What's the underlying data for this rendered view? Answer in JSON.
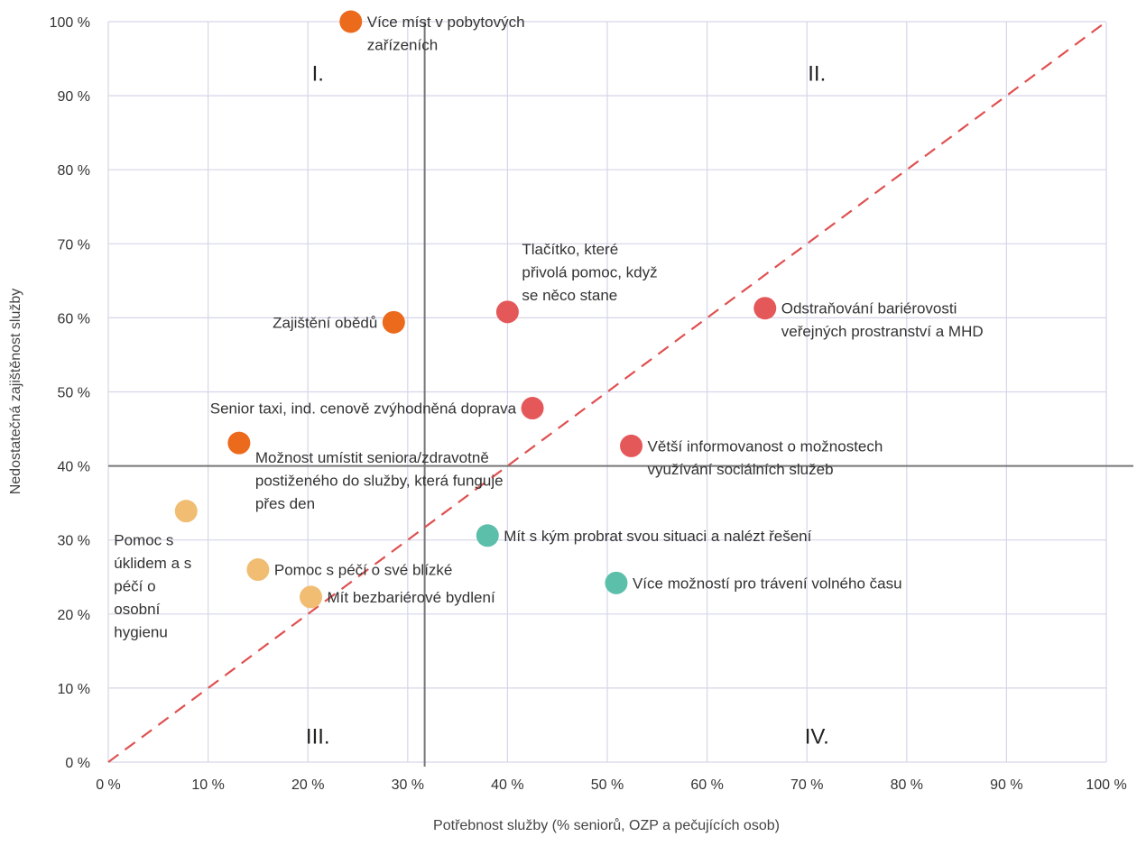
{
  "chart_data": {
    "type": "scatter",
    "xlabel": "Potřebnost služby (% seniorů, OZP a pečujících osob)",
    "ylabel": "Nedostatečná zajištěnost služby",
    "xlim": [
      0,
      100
    ],
    "ylim": [
      0,
      100
    ],
    "x_ticks": [
      "0 %",
      "10 %",
      "20 %",
      "30 %",
      "40 %",
      "50 %",
      "60 %",
      "70 %",
      "80 %",
      "90 %",
      "100 %"
    ],
    "y_ticks": [
      "0 %",
      "10 %",
      "20 %",
      "30 %",
      "40 %",
      "50 %",
      "60 %",
      "70 %",
      "80 %",
      "90 %",
      "100 %"
    ],
    "grid": true,
    "divider_x": 31.7,
    "divider_y": 40,
    "diagonal_color": "#e05050",
    "quadrant_labels": [
      {
        "text": "I.",
        "x": 21,
        "y": 92
      },
      {
        "text": "II.",
        "x": 71,
        "y": 92
      },
      {
        "text": "III.",
        "x": 21,
        "y": 2.5
      },
      {
        "text": "IV.",
        "x": 71,
        "y": 2.5
      }
    ],
    "colors": {
      "orange": "#ec6a1c",
      "red": "#e5585a",
      "peach": "#f0bd72",
      "teal": "#5bbfaa"
    },
    "points": [
      {
        "x": 24.3,
        "y": 100,
        "color": "orange",
        "lines": [
          "Více míst v pobytových",
          "zařízeních"
        ],
        "align": "right"
      },
      {
        "x": 28.6,
        "y": 59.4,
        "color": "orange",
        "lines": [
          "Zajištění obědů"
        ],
        "align": "left"
      },
      {
        "x": 13.1,
        "y": 43.1,
        "color": "orange",
        "lines": [
          "Možnost umístit seniora/zdravotně",
          "postiženého do služby, která funguje",
          "přes den"
        ],
        "align": "below-right"
      },
      {
        "x": 40.0,
        "y": 60.8,
        "color": "red",
        "lines": [
          "Tlačítko, které",
          "přivolá pomoc, když",
          "se něco stane"
        ],
        "align": "above-right"
      },
      {
        "x": 42.5,
        "y": 47.8,
        "color": "red",
        "lines": [
          "Senior taxi, ind. cenově zvýhodněná doprava"
        ],
        "align": "left"
      },
      {
        "x": 65.8,
        "y": 61.3,
        "color": "red",
        "lines": [
          "Odstraňování bariérovosti",
          "veřejných prostranství a MHD"
        ],
        "align": "right"
      },
      {
        "x": 52.4,
        "y": 42.7,
        "color": "red",
        "lines": [
          "Větší informovanost o možnostech",
          "využívání sociálních služeb"
        ],
        "align": "right"
      },
      {
        "x": 38.0,
        "y": 30.6,
        "color": "teal",
        "lines": [
          "Mít s kým probrat svou situaci a nalézt řešení"
        ],
        "align": "right"
      },
      {
        "x": 50.9,
        "y": 24.2,
        "color": "teal",
        "lines": [
          "Více možností pro trávení volného času"
        ],
        "align": "right"
      },
      {
        "x": 7.8,
        "y": 33.9,
        "color": "peach",
        "lines": [
          "Pomoc s",
          "úklidem a s",
          "péčí o",
          "osobní",
          "hygienu"
        ],
        "align": "below-left"
      },
      {
        "x": 15.0,
        "y": 26.0,
        "color": "peach",
        "lines": [
          "Pomoc s péčí o své blízké"
        ],
        "align": "right"
      },
      {
        "x": 20.3,
        "y": 22.3,
        "color": "peach",
        "lines": [
          "Mít bezbariérové bydlení"
        ],
        "align": "right"
      }
    ]
  }
}
